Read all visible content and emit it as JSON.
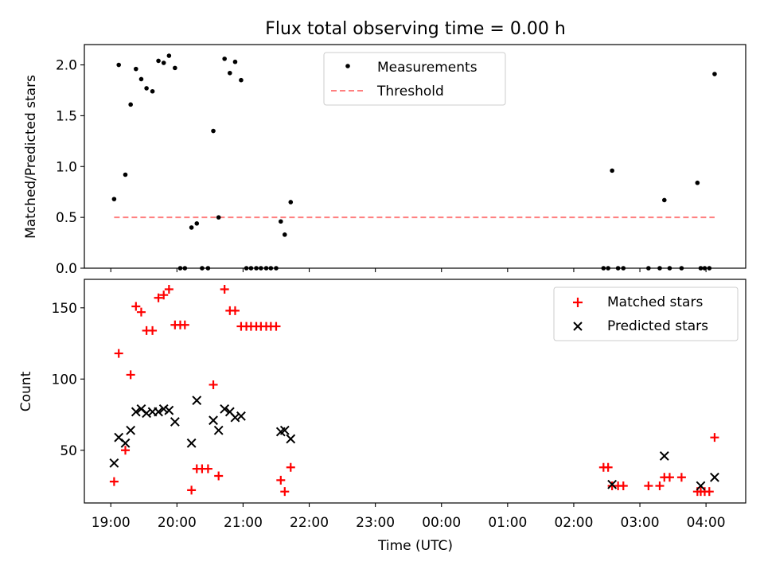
{
  "title": "Flux total observing time = 0.00 h",
  "xlabel": "Time (UTC)",
  "x_ticks": [
    {
      "v": 19,
      "label": "19:00"
    },
    {
      "v": 20,
      "label": "20:00"
    },
    {
      "v": 21,
      "label": "21:00"
    },
    {
      "v": 22,
      "label": "22:00"
    },
    {
      "v": 23,
      "label": "23:00"
    },
    {
      "v": 24,
      "label": "00:00"
    },
    {
      "v": 25,
      "label": "01:00"
    },
    {
      "v": 26,
      "label": "02:00"
    },
    {
      "v": 27,
      "label": "03:00"
    },
    {
      "v": 28,
      "label": "04:00"
    }
  ],
  "colors": {
    "measurements": "#000000",
    "threshold": "#ff7f7f",
    "matched": "#ff0000",
    "predicted": "#000000"
  },
  "chart_data": [
    {
      "type": "scatter",
      "ylabel": "Matched/Predicted stars",
      "xlim": [
        18.6,
        28.6
      ],
      "ylim": [
        0,
        2.2
      ],
      "y_ticks": [
        {
          "v": 0,
          "label": "0.0"
        },
        {
          "v": 0.5,
          "label": "0.5"
        },
        {
          "v": 1,
          "label": "1.0"
        },
        {
          "v": 1.5,
          "label": "1.5"
        },
        {
          "v": 2,
          "label": "2.0"
        }
      ],
      "legend_position": "top-center",
      "series": [
        {
          "name": "Measurements",
          "x": [
            19.05,
            19.12,
            19.22,
            19.3,
            19.38,
            19.46,
            19.54,
            19.63,
            19.72,
            19.8,
            19.88,
            19.97,
            20.05,
            20.12,
            20.22,
            20.3,
            20.38,
            20.47,
            20.55,
            20.63,
            20.72,
            20.8,
            20.88,
            20.97,
            21.05,
            21.12,
            21.2,
            21.27,
            21.35,
            21.42,
            21.5,
            21.57,
            21.63,
            21.72,
            26.45,
            26.52,
            26.58,
            26.67,
            26.75,
            27.13,
            27.3,
            27.37,
            27.45,
            27.63,
            27.87,
            27.92,
            27.98,
            28.05,
            28.13
          ],
          "y": [
            0.68,
            2.0,
            0.92,
            1.61,
            1.96,
            1.86,
            1.77,
            1.74,
            2.04,
            2.02,
            2.09,
            1.97,
            0,
            0,
            0.4,
            0.44,
            0,
            0,
            1.35,
            0.5,
            2.06,
            1.92,
            2.03,
            1.85,
            0,
            0,
            0,
            0,
            0,
            0,
            0,
            0.46,
            0.33,
            0.65,
            0,
            0,
            0.96,
            0,
            0,
            0,
            0,
            0.67,
            0,
            0,
            0.84,
            0,
            0,
            0,
            1.91
          ]
        },
        {
          "name": "Threshold",
          "x": [
            19.05,
            28.13
          ],
          "y": [
            0.5,
            0.5
          ]
        }
      ]
    },
    {
      "type": "scatter",
      "ylabel": "Count",
      "xlim": [
        18.6,
        28.6
      ],
      "ylim": [
        13,
        170
      ],
      "y_ticks": [
        {
          "v": 50,
          "label": "50"
        },
        {
          "v": 100,
          "label": "100"
        },
        {
          "v": 150,
          "label": "150"
        }
      ],
      "legend_position": "top-right",
      "series": [
        {
          "name": "Matched stars",
          "x": [
            19.05,
            19.12,
            19.22,
            19.3,
            19.38,
            19.46,
            19.54,
            19.63,
            19.72,
            19.8,
            19.88,
            19.97,
            20.05,
            20.12,
            20.22,
            20.3,
            20.38,
            20.47,
            20.55,
            20.63,
            20.72,
            20.8,
            20.88,
            20.97,
            21.05,
            21.12,
            21.2,
            21.27,
            21.35,
            21.42,
            21.5,
            21.57,
            21.63,
            21.72,
            26.45,
            26.52,
            26.58,
            26.67,
            26.75,
            27.13,
            27.3,
            27.37,
            27.45,
            27.63,
            27.87,
            27.92,
            27.98,
            28.05,
            28.13
          ],
          "y": [
            28,
            118,
            50,
            103,
            151,
            147,
            134,
            134,
            157,
            159,
            163,
            138,
            138,
            138,
            22,
            37,
            37,
            37,
            96,
            32,
            163,
            148,
            148,
            137,
            137,
            137,
            137,
            137,
            137,
            137,
            137,
            29,
            21,
            38,
            38,
            38,
            25,
            25,
            25,
            25,
            25,
            31,
            31,
            31,
            21,
            21,
            21,
            21,
            59
          ]
        },
        {
          "name": "Predicted stars",
          "x": [
            19.05,
            19.12,
            19.22,
            19.3,
            19.38,
            19.46,
            19.54,
            19.63,
            19.72,
            19.8,
            19.88,
            19.97,
            20.22,
            20.3,
            20.55,
            20.63,
            20.72,
            20.8,
            20.88,
            20.97,
            21.57,
            21.63,
            21.72,
            26.58,
            27.37,
            27.92,
            28.13
          ],
          "y": [
            41,
            59,
            55,
            64,
            77,
            79,
            76,
            77,
            77,
            79,
            78,
            70,
            55,
            85,
            71,
            64,
            79,
            77,
            73,
            74,
            63,
            64,
            58,
            26,
            46,
            25,
            31
          ]
        }
      ]
    }
  ]
}
